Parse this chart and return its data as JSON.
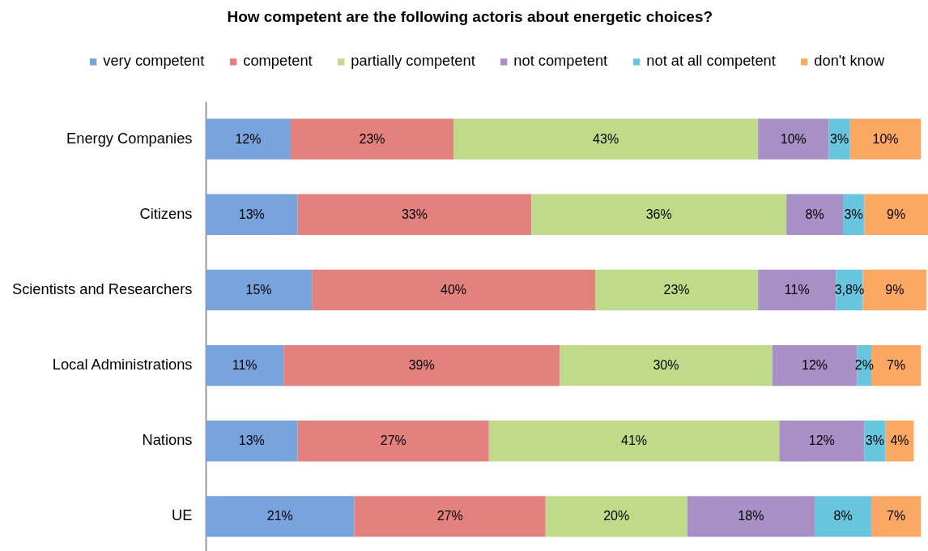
{
  "chart_data": {
    "type": "bar",
    "orientation": "horizontal",
    "stacked": true,
    "title": "How competent are the following actoris about energetic choices?",
    "categories": [
      "Energy Companies",
      "Citizens",
      "Scientists and Researchers",
      "Local Administrations",
      "Nations",
      "UE"
    ],
    "series": [
      {
        "name": "very competent",
        "color": "#78a3dd",
        "values": [
          12,
          13,
          15,
          11,
          13,
          21
        ],
        "value_labels": [
          "12%",
          "13%",
          "15%",
          "11%",
          "13%",
          "21%"
        ]
      },
      {
        "name": "competent",
        "color": "#e2817e",
        "values": [
          23,
          33,
          40,
          39,
          27,
          27
        ],
        "value_labels": [
          "23%",
          "33%",
          "40%",
          "39%",
          "27%",
          "27%"
        ]
      },
      {
        "name": "partially competent",
        "color": "#bfdb8a",
        "values": [
          43,
          36,
          23,
          30,
          41,
          20
        ],
        "value_labels": [
          "43%",
          "36%",
          "23%",
          "30%",
          "41%",
          "20%"
        ]
      },
      {
        "name": "not competent",
        "color": "#a890c6",
        "values": [
          10,
          8,
          11,
          12,
          12,
          18
        ],
        "value_labels": [
          "10%",
          "8%",
          "11%",
          "12%",
          "12%",
          "18%"
        ]
      },
      {
        "name": "not at all competent",
        "color": "#67c6de",
        "values": [
          3,
          3,
          3.8,
          2,
          3,
          8
        ],
        "value_labels": [
          "3%",
          "3%",
          "3,8%",
          "2%",
          "3%",
          "8%"
        ]
      },
      {
        "name": "don't know",
        "color": "#fba865",
        "values": [
          10,
          9,
          9,
          7,
          4,
          7
        ],
        "value_labels": [
          "10%",
          "9%",
          "9%",
          "7%",
          "4%",
          "7%"
        ]
      }
    ],
    "legend": "top",
    "tick_labels": "y"
  }
}
